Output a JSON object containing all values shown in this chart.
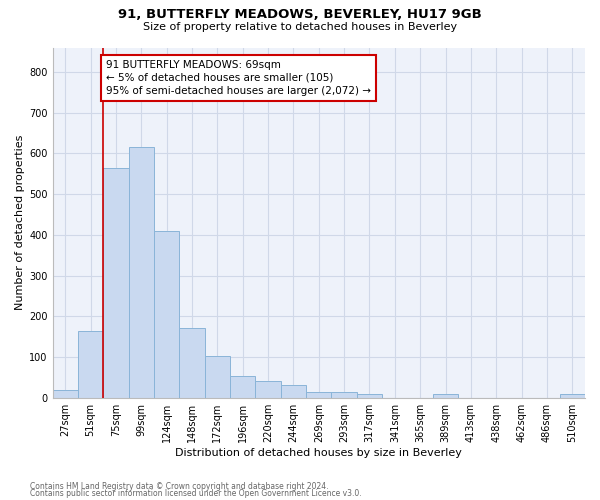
{
  "title1": "91, BUTTERFLY MEADOWS, BEVERLEY, HU17 9GB",
  "title2": "Size of property relative to detached houses in Beverley",
  "xlabel": "Distribution of detached houses by size in Beverley",
  "ylabel": "Number of detached properties",
  "bar_labels": [
    "27sqm",
    "51sqm",
    "75sqm",
    "99sqm",
    "124sqm",
    "148sqm",
    "172sqm",
    "196sqm",
    "220sqm",
    "244sqm",
    "269sqm",
    "293sqm",
    "317sqm",
    "341sqm",
    "365sqm",
    "389sqm",
    "413sqm",
    "438sqm",
    "462sqm",
    "486sqm",
    "510sqm"
  ],
  "bar_values": [
    18,
    163,
    565,
    615,
    410,
    170,
    103,
    53,
    40,
    32,
    15,
    13,
    10,
    0,
    0,
    9,
    0,
    0,
    0,
    0,
    8
  ],
  "bar_color": "#c9d9f0",
  "bar_edge_color": "#8ab4d8",
  "grid_color": "#d0d8e8",
  "annotation_line1": "91 BUTTERFLY MEADOWS: 69sqm",
  "annotation_line2": "← 5% of detached houses are smaller (105)",
  "annotation_line3": "95% of semi-detached houses are larger (2,072) →",
  "annotation_box_color": "#ffffff",
  "annotation_box_edge": "#cc0000",
  "red_line_x": 1.5,
  "ylim": [
    0,
    860
  ],
  "yticks": [
    0,
    100,
    200,
    300,
    400,
    500,
    600,
    700,
    800
  ],
  "footer1": "Contains HM Land Registry data © Crown copyright and database right 2024.",
  "footer2": "Contains public sector information licensed under the Open Government Licence v3.0.",
  "bg_color": "#eef2fa",
  "title1_fontsize": 9.5,
  "title2_fontsize": 8.0,
  "ylabel_fontsize": 8.0,
  "xlabel_fontsize": 8.0,
  "tick_fontsize": 7.0,
  "annot_fontsize": 7.5,
  "footer_fontsize": 5.5
}
